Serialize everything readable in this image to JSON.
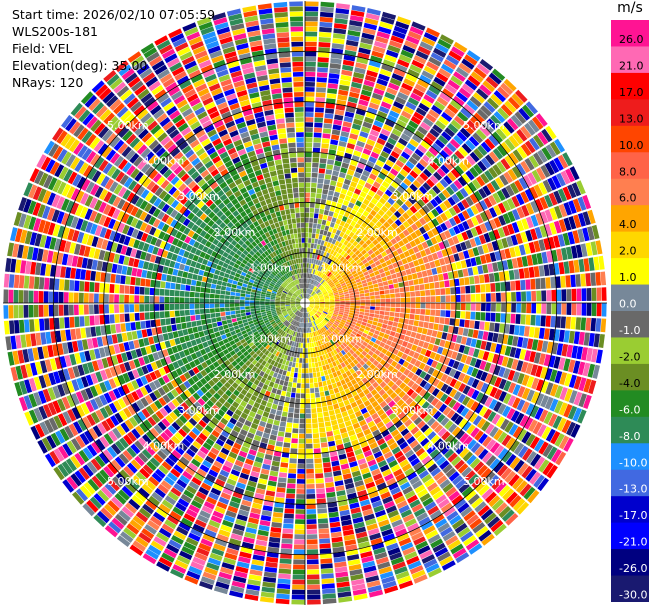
{
  "info": {
    "start_time": "Start time: 2026/02/10 07:05:59",
    "instrument": "WLS200s-181",
    "field": "Field: VEL",
    "elevation": "Elevation(deg): 35.00",
    "nrays": "NRays: 120"
  },
  "chart_data": {
    "type": "ppi",
    "field": "VEL",
    "units": "m/s",
    "n_rays": 120,
    "elevation_deg": 35.0,
    "range_rings_km": [
      1.0,
      2.0,
      3.0,
      4.0,
      5.0
    ],
    "ring_labels": [
      "1.00km",
      "2.00km",
      "3.00km",
      "4.00km",
      "5.00km"
    ],
    "max_range_km": 6.0,
    "colorbar": {
      "title": "m/s",
      "labels": [
        "26.0",
        "21.0",
        "17.0",
        "13.0",
        "10.0",
        "8.0",
        "6.0",
        "4.0",
        "2.0",
        "1.0",
        "0.0",
        "-1.0",
        "-2.0",
        "-4.0",
        "-6.0",
        "-8.0",
        "-10.0",
        "-13.0",
        "-17.0",
        "-21.0",
        "-26.0",
        "-30.0"
      ],
      "colors": [
        "#ff1493",
        "#ff69b4",
        "#ff0000",
        "#ee1c1c",
        "#ff4500",
        "#ff6347",
        "#ff7f50",
        "#ffa500",
        "#ffd700",
        "#ffff00",
        "#778899",
        "#696969",
        "#9acd32",
        "#6b8e23",
        "#228b22",
        "#2e8b57",
        "#1e90ff",
        "#4169e1",
        "#0000cd",
        "#0000ff",
        "#000080",
        "#191970"
      ]
    }
  }
}
